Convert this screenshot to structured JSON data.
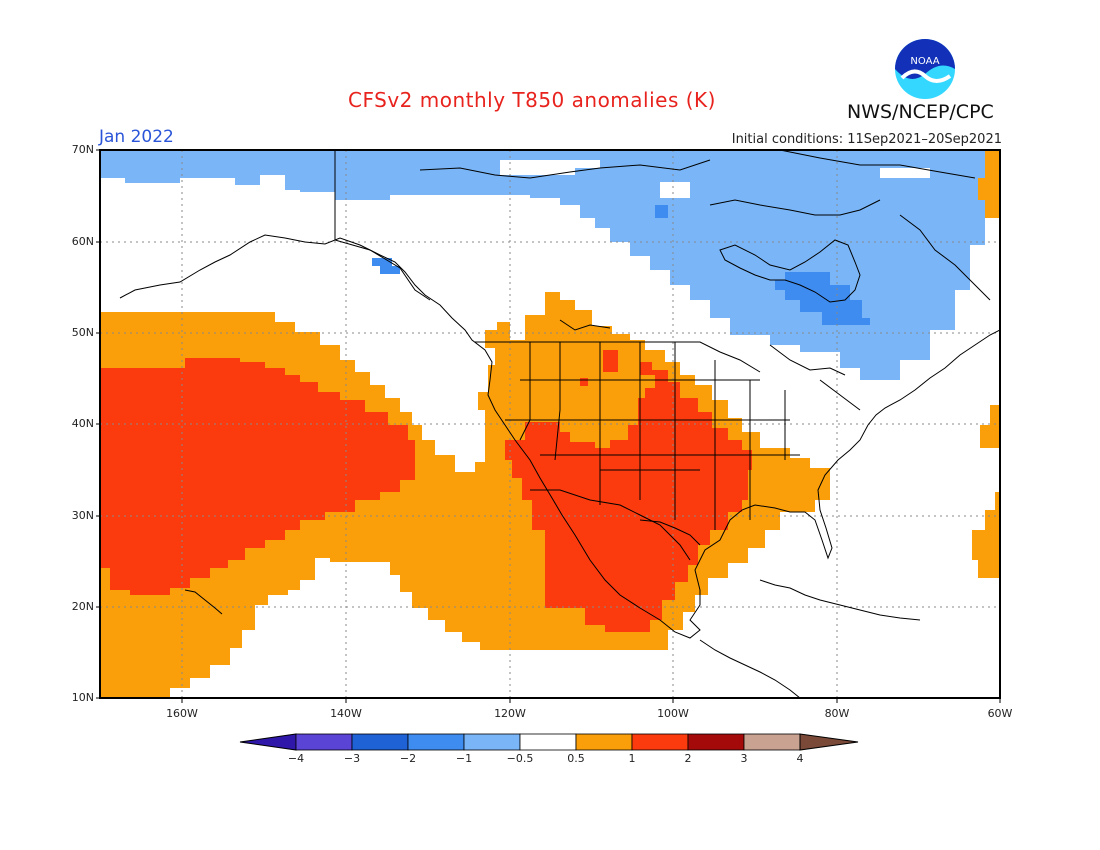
{
  "header": {
    "title": "CFSv2 monthly T850 anomalies (K)",
    "month": "Jan 2022",
    "initial_conditions": "Initial conditions: 11Sep2021–20Sep2021",
    "agency": "NWS/NCEP/CPC",
    "logo_text": "NOAA"
  },
  "map": {
    "lat_labels": [
      "70N",
      "60N",
      "50N",
      "40N",
      "30N",
      "20N",
      "10N"
    ],
    "lon_labels": [
      "160W",
      "140W",
      "120W",
      "100W",
      "80W",
      "60W"
    ],
    "extent": {
      "lon_min": -170,
      "lon_max": -60,
      "lat_min": 10,
      "lat_max": 70
    }
  },
  "colorbar": {
    "ticks": [
      "−4",
      "−3",
      "−2",
      "−1",
      "−0.5",
      "0.5",
      "1",
      "2",
      "3",
      "4"
    ],
    "colors": [
      "#2f17a9",
      "#5a44d6",
      "#1f62d6",
      "#3f8cf0",
      "#7ab6f7",
      "#ffffff",
      "#fa9f0a",
      "#fb3b0d",
      "#a50a0a",
      "#c9a291",
      "#7a4938"
    ]
  },
  "colors": {
    "cold_light": "#7ab6f7",
    "cold_mid": "#3f8cf0",
    "warm_light": "#fa9f0a",
    "warm_mid": "#fb3b0d",
    "title": "#e8231e",
    "month": "#2a55d8"
  }
}
